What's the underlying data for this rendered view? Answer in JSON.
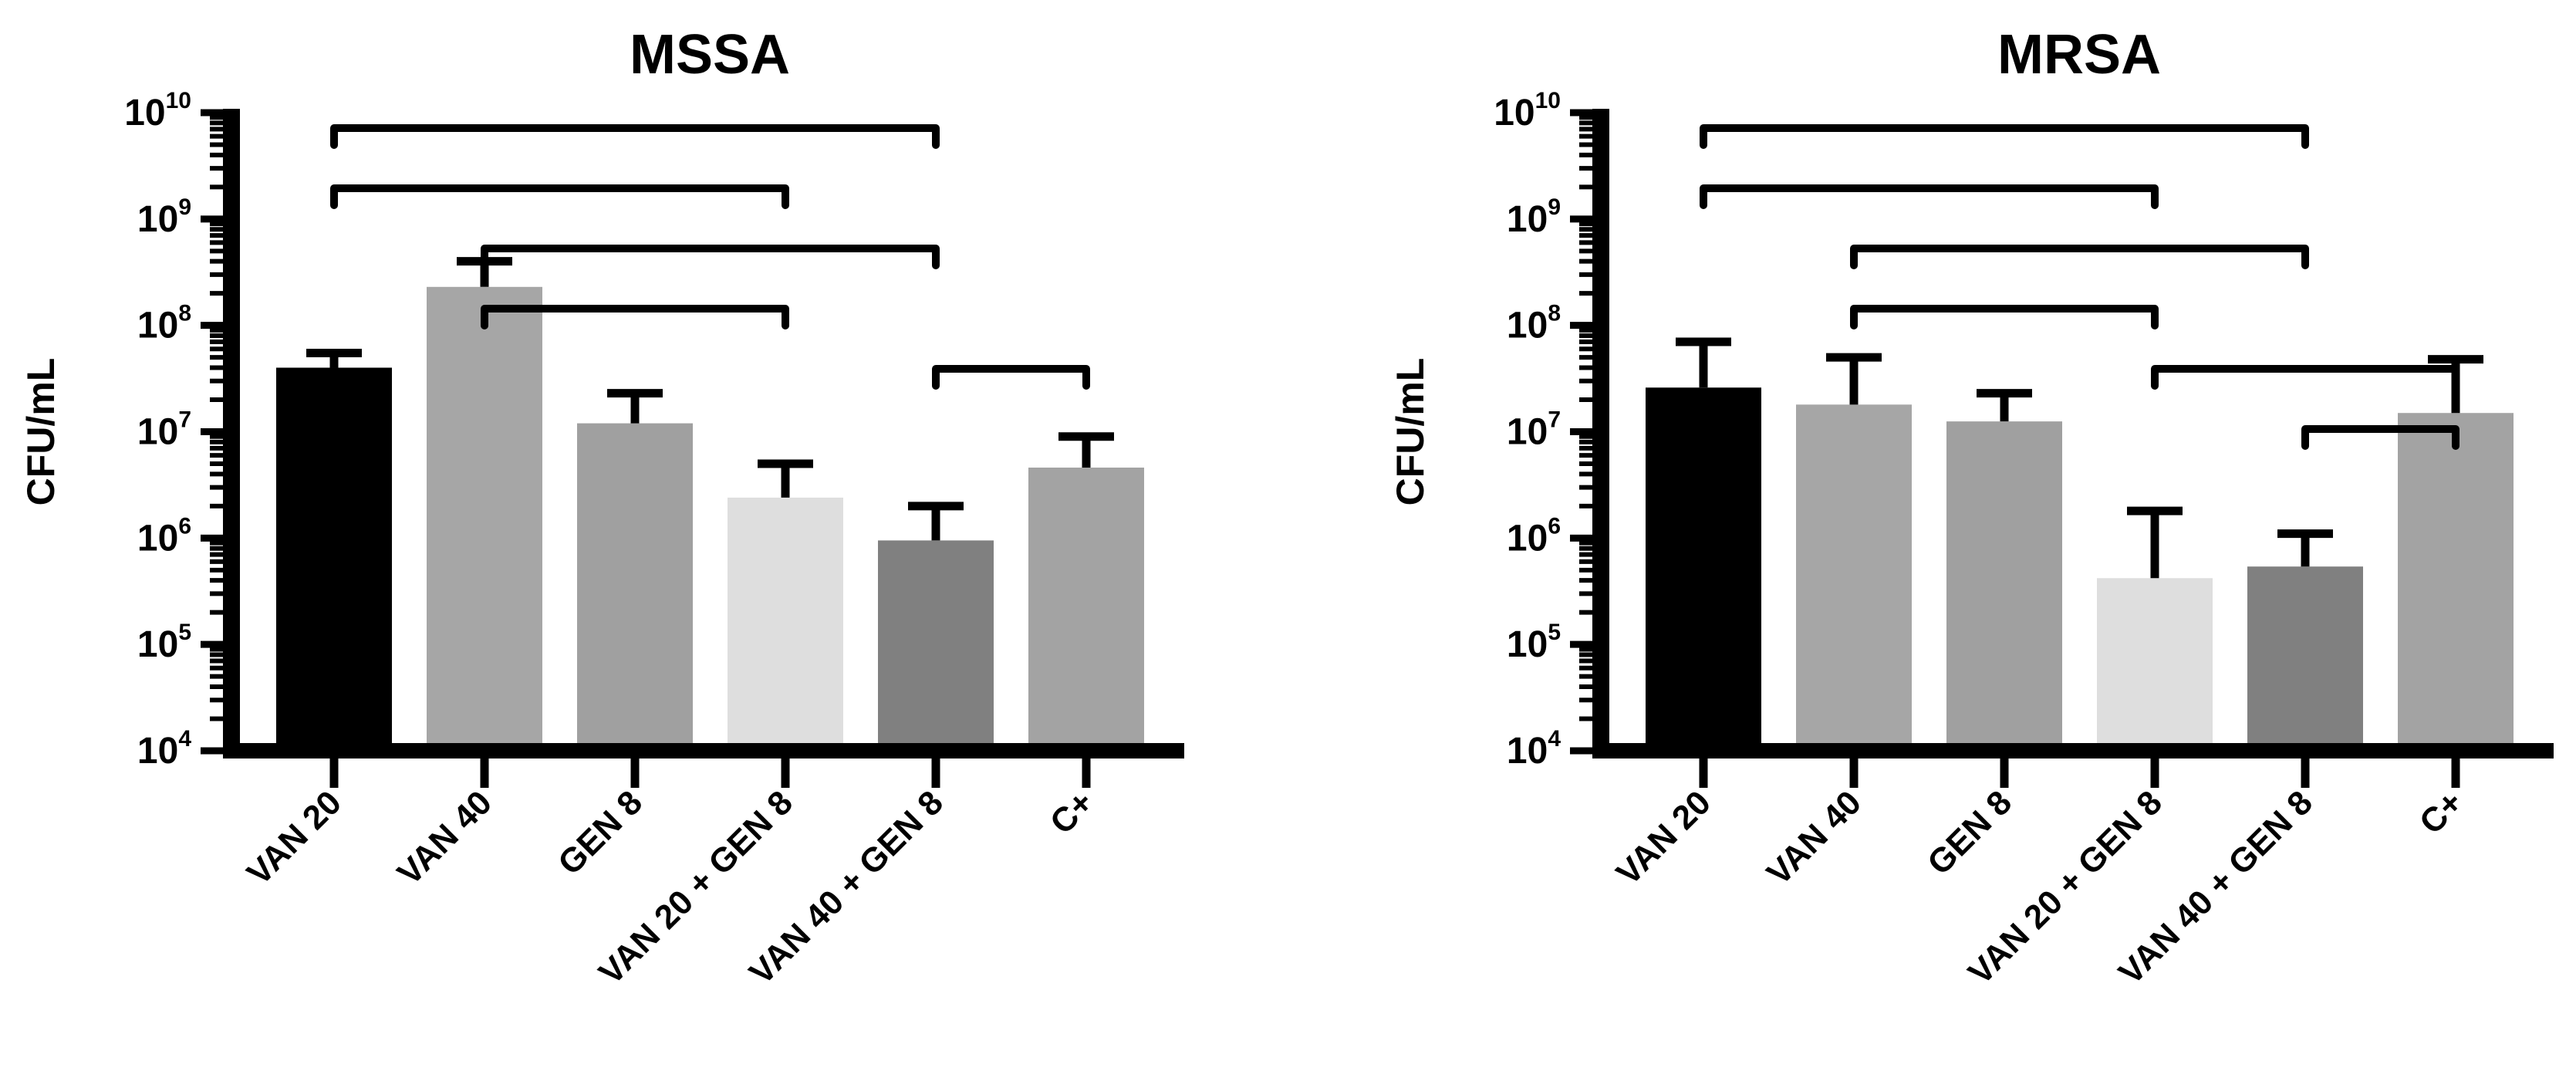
{
  "chart_data": [
    {
      "type": "bar",
      "title": "MSSA",
      "ylabel": "CFU/mL",
      "yscale": "log",
      "ylim": [
        10000,
        10000000000
      ],
      "yticks": [
        {
          "base": "10",
          "exp": "4",
          "value": 10000
        },
        {
          "base": "10",
          "exp": "5",
          "value": 100000
        },
        {
          "base": "10",
          "exp": "6",
          "value": 1000000
        },
        {
          "base": "10",
          "exp": "7",
          "value": 10000000
        },
        {
          "base": "10",
          "exp": "8",
          "value": 100000000
        },
        {
          "base": "10",
          "exp": "9",
          "value": 1000000000
        },
        {
          "base": "10",
          "exp": "10",
          "value": 10000000000
        }
      ],
      "categories": [
        "VAN 20",
        "VAN 40",
        "GEN 8",
        "VAN 20 + GEN 8",
        "VAN 40 + GEN 8",
        "C+"
      ],
      "values": [
        40000000,
        230000000,
        12000000,
        2400000,
        950000,
        4600000
      ],
      "error_upper": [
        55000000,
        400000000,
        23000000,
        5000000,
        2000000,
        9000000
      ],
      "colors": [
        "#000000",
        "#a6a6a6",
        "#a0a0a0",
        "#dedede",
        "#808080",
        "#a3a3a3"
      ],
      "significance": [
        [
          0,
          4
        ],
        [
          0,
          3
        ],
        [
          1,
          4
        ],
        [
          1,
          3
        ],
        [
          4,
          5
        ]
      ]
    },
    {
      "type": "bar",
      "title": "MRSA",
      "ylabel": "CFU/mL",
      "yscale": "log",
      "ylim": [
        10000,
        10000000000
      ],
      "yticks": [
        {
          "base": "10",
          "exp": "4",
          "value": 10000
        },
        {
          "base": "10",
          "exp": "5",
          "value": 100000
        },
        {
          "base": "10",
          "exp": "6",
          "value": 1000000
        },
        {
          "base": "10",
          "exp": "7",
          "value": 10000000
        },
        {
          "base": "10",
          "exp": "8",
          "value": 100000000
        },
        {
          "base": "10",
          "exp": "9",
          "value": 1000000000
        },
        {
          "base": "10",
          "exp": "10",
          "value": 10000000000
        }
      ],
      "categories": [
        "VAN 20",
        "VAN 40",
        "GEN 8",
        "VAN 20 + GEN 8",
        "VAN 40 + GEN 8",
        "C+"
      ],
      "values": [
        26000000,
        18000000,
        12500000,
        420000,
        540000,
        15000000
      ],
      "error_upper": [
        70000000,
        50000000,
        23000000,
        1800000,
        1100000,
        48000000
      ],
      "colors": [
        "#000000",
        "#a6a6a6",
        "#a0a0a0",
        "#dedede",
        "#808080",
        "#a3a3a3"
      ],
      "significance": [
        [
          0,
          4
        ],
        [
          0,
          3
        ],
        [
          1,
          4
        ],
        [
          1,
          3
        ],
        [
          3,
          5
        ],
        [
          4,
          5
        ]
      ]
    }
  ]
}
